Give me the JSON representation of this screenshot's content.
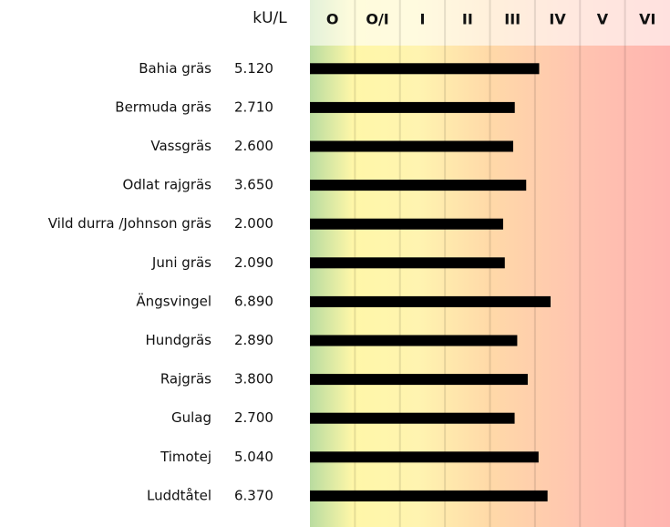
{
  "chart_data": {
    "type": "bar",
    "orientation": "horizontal",
    "unit_label": "kU/L",
    "classes": [
      "O",
      "O/I",
      "I",
      "II",
      "III",
      "IV",
      "V",
      "VI"
    ],
    "categories": [
      "Bahia gräs",
      "Bermuda gräs",
      "Vassgräs",
      "Odlat rajgräs",
      "Vild durra /Johnson gräs",
      "Juni gräs",
      "Ängsvingel",
      "Hundgräs",
      "Rajgräs",
      "Gulag",
      "Timotej",
      "Luddtåtel"
    ],
    "values": [
      5.12,
      2.71,
      2.6,
      3.65,
      2.0,
      2.09,
      6.89,
      2.89,
      3.8,
      2.7,
      5.04,
      6.37
    ],
    "value_labels": [
      "5.120",
      "2.710",
      "2.600",
      "3.650",
      "2.000",
      "2.090",
      "6.890",
      "2.890",
      "3.800",
      "2.700",
      "5.040",
      "6.370"
    ],
    "color": "#000000",
    "xscale": "log",
    "xlim": [
      0.013,
      155
    ]
  }
}
